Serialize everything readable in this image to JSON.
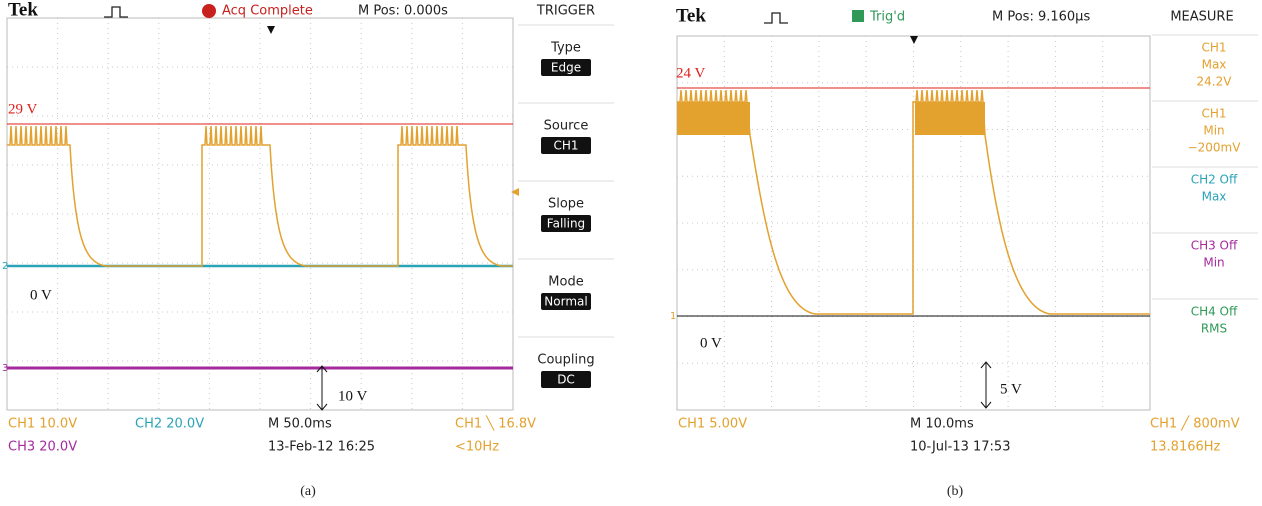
{
  "panels": [
    {
      "header": {
        "brand": "Tek",
        "status": "Acq Complete",
        "position": "M Pos: 0.000s",
        "menu_title": "TRIGGER"
      },
      "menu": [
        {
          "label": "Type",
          "value": "Edge"
        },
        {
          "label": "Source",
          "value": "CH1"
        },
        {
          "label": "Slope",
          "value": "Falling"
        },
        {
          "label": "Mode",
          "value": "Normal"
        },
        {
          "label": "Coupling",
          "value": "DC"
        }
      ],
      "markers": [
        "2",
        "3"
      ],
      "annotations": [
        "29 V",
        "0 V",
        "10 V"
      ],
      "footer": [
        "CH1  10.0V",
        "CH2  20.0V",
        "M 50.0ms",
        "CH1 ╲ 16.8V",
        "CH3  20.0V",
        "13-Feb-12 16:25",
        "<10Hz"
      ],
      "caption": "(a)"
    },
    {
      "header": {
        "brand": "Tek",
        "status": "Trig'd",
        "position": "M Pos: 9.160µs",
        "menu_title": "MEASURE"
      },
      "menu": [
        {
          "lines": [
            "CH1",
            "Max",
            "24.2V"
          ]
        },
        {
          "lines": [
            "CH1",
            "Min",
            "−200mV"
          ]
        },
        {
          "lines": [
            "CH2 Off",
            "Max"
          ]
        },
        {
          "lines": [
            "CH3 Off",
            "Min"
          ]
        },
        {
          "lines": [
            "CH4 Off",
            "RMS"
          ]
        }
      ],
      "markers": [
        "1"
      ],
      "annotations": [
        "24 V",
        "0 V",
        "5 V"
      ],
      "footer": [
        "CH1  5.00V",
        "M 10.0ms",
        "CH1 ╱ 800mV",
        "10-Jul-13 17:53",
        "13.8166Hz"
      ],
      "caption": "(b)"
    }
  ]
}
